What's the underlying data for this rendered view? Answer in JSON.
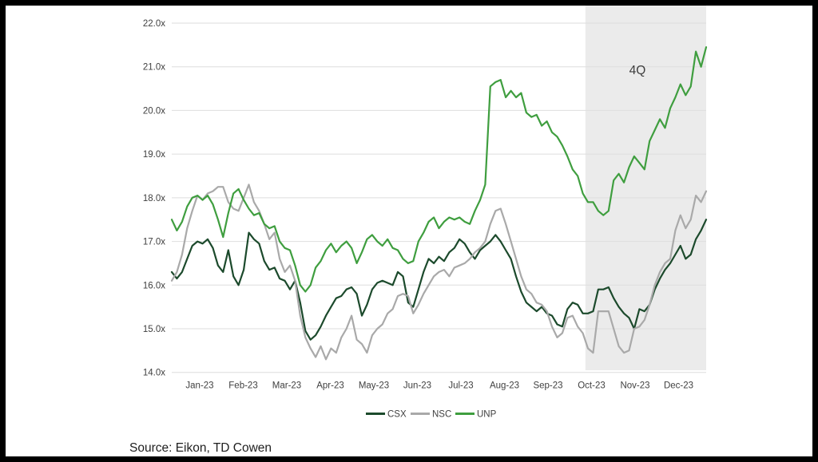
{
  "frame": {
    "border_color": "#000000",
    "background_color": "#ffffff"
  },
  "chart_data": {
    "type": "line",
    "title": "",
    "xlabel": "",
    "ylabel": "",
    "ylim": [
      14,
      22
    ],
    "y_tick_labels": [
      "22.0x",
      "21.0x",
      "20.0x",
      "19.0x",
      "18.0x",
      "17.0x",
      "16.0x",
      "15.0x",
      "14.0x"
    ],
    "x_labels": [
      "Jan-23",
      "Feb-23",
      "Mar-23",
      "Apr-23",
      "May-23",
      "Jun-23",
      "Jul-23",
      "Aug-23",
      "Sep-23",
      "Oct-23",
      "Nov-23",
      "Dec-23"
    ],
    "grid": true,
    "gridline_color": "#dedede",
    "tick_label_color": "#404040",
    "legend_position": "bottom",
    "annotation": "4Q",
    "source": "Source: Eikon, TD Cowen",
    "shaded_region": {
      "label": "4Q",
      "start_fraction": 0.774,
      "end_fraction": 1.0,
      "color": "#ebebeb"
    },
    "series": [
      {
        "name": "CSX",
        "color": "#1c4a2c",
        "values": [
          16.3,
          16.15,
          16.3,
          16.6,
          16.9,
          17.0,
          16.95,
          17.05,
          16.85,
          16.45,
          16.3,
          16.8,
          16.2,
          16.0,
          16.35,
          17.2,
          17.05,
          16.95,
          16.55,
          16.35,
          16.4,
          16.15,
          16.1,
          15.9,
          16.1,
          15.6,
          14.95,
          14.75,
          14.85,
          15.05,
          15.3,
          15.5,
          15.7,
          15.75,
          15.9,
          15.95,
          15.8,
          15.3,
          15.55,
          15.9,
          16.05,
          16.1,
          16.05,
          16.0,
          16.3,
          16.2,
          15.6,
          15.5,
          15.9,
          16.3,
          16.6,
          16.5,
          16.65,
          16.55,
          16.75,
          16.85,
          17.05,
          16.95,
          16.75,
          16.6,
          16.8,
          16.9,
          17.0,
          17.15,
          17.0,
          16.8,
          16.6,
          16.2,
          15.85,
          15.6,
          15.5,
          15.4,
          15.5,
          15.35,
          15.3,
          15.1,
          15.05,
          15.45,
          15.6,
          15.55,
          15.35,
          15.35,
          15.4,
          15.9,
          15.9,
          15.95,
          15.7,
          15.5,
          15.35,
          15.25,
          15.0,
          15.45,
          15.4,
          15.55,
          15.9,
          16.15,
          16.35,
          16.5,
          16.7,
          16.9,
          16.6,
          16.7,
          17.05,
          17.25,
          17.5
        ]
      },
      {
        "name": "NSC",
        "color": "#a9a9a9",
        "values": [
          16.1,
          16.3,
          16.7,
          17.3,
          17.7,
          18.05,
          17.95,
          18.1,
          18.15,
          18.25,
          18.25,
          17.9,
          17.75,
          17.7,
          18.0,
          18.3,
          17.9,
          17.7,
          17.4,
          17.05,
          17.2,
          16.6,
          16.3,
          16.45,
          16.1,
          15.3,
          14.8,
          14.55,
          14.35,
          14.6,
          14.3,
          14.55,
          14.45,
          14.8,
          15.0,
          15.3,
          14.75,
          14.65,
          14.45,
          14.85,
          15.0,
          15.1,
          15.35,
          15.45,
          15.75,
          15.8,
          15.75,
          15.35,
          15.55,
          15.8,
          16.0,
          16.2,
          16.3,
          16.35,
          16.2,
          16.4,
          16.45,
          16.5,
          16.6,
          16.75,
          16.85,
          17.0,
          17.4,
          17.7,
          17.75,
          17.4,
          17.0,
          16.6,
          16.2,
          15.9,
          15.8,
          15.6,
          15.55,
          15.4,
          15.05,
          14.8,
          14.9,
          15.25,
          15.3,
          15.05,
          14.9,
          14.55,
          14.45,
          15.4,
          15.4,
          15.4,
          15.0,
          14.6,
          14.45,
          14.5,
          15.0,
          15.05,
          15.2,
          15.55,
          16.0,
          16.3,
          16.5,
          16.6,
          17.25,
          17.6,
          17.3,
          17.5,
          18.05,
          17.9,
          18.15
        ]
      },
      {
        "name": "UNP",
        "color": "#3f9e3f",
        "values": [
          17.5,
          17.25,
          17.45,
          17.8,
          18.0,
          18.05,
          17.95,
          18.05,
          17.85,
          17.5,
          17.1,
          17.65,
          18.1,
          18.2,
          17.95,
          17.75,
          17.6,
          17.65,
          17.4,
          17.3,
          17.35,
          17.0,
          16.85,
          16.8,
          16.45,
          16.0,
          15.85,
          16.0,
          16.4,
          16.55,
          16.8,
          16.95,
          16.75,
          16.9,
          17.0,
          16.85,
          16.5,
          16.75,
          17.05,
          17.15,
          17.0,
          16.9,
          17.05,
          16.85,
          16.8,
          16.6,
          16.5,
          16.55,
          17.0,
          17.2,
          17.45,
          17.55,
          17.3,
          17.45,
          17.55,
          17.5,
          17.55,
          17.45,
          17.4,
          17.7,
          17.95,
          18.3,
          20.55,
          20.65,
          20.7,
          20.3,
          20.45,
          20.3,
          20.4,
          19.95,
          19.85,
          19.9,
          19.65,
          19.75,
          19.5,
          19.4,
          19.2,
          18.95,
          18.65,
          18.5,
          18.1,
          17.9,
          17.9,
          17.7,
          17.6,
          17.7,
          18.4,
          18.55,
          18.35,
          18.7,
          18.95,
          18.8,
          18.65,
          19.3,
          19.55,
          19.8,
          19.6,
          20.05,
          20.3,
          20.6,
          20.35,
          20.55,
          21.35,
          21.0,
          21.45
        ]
      }
    ]
  }
}
